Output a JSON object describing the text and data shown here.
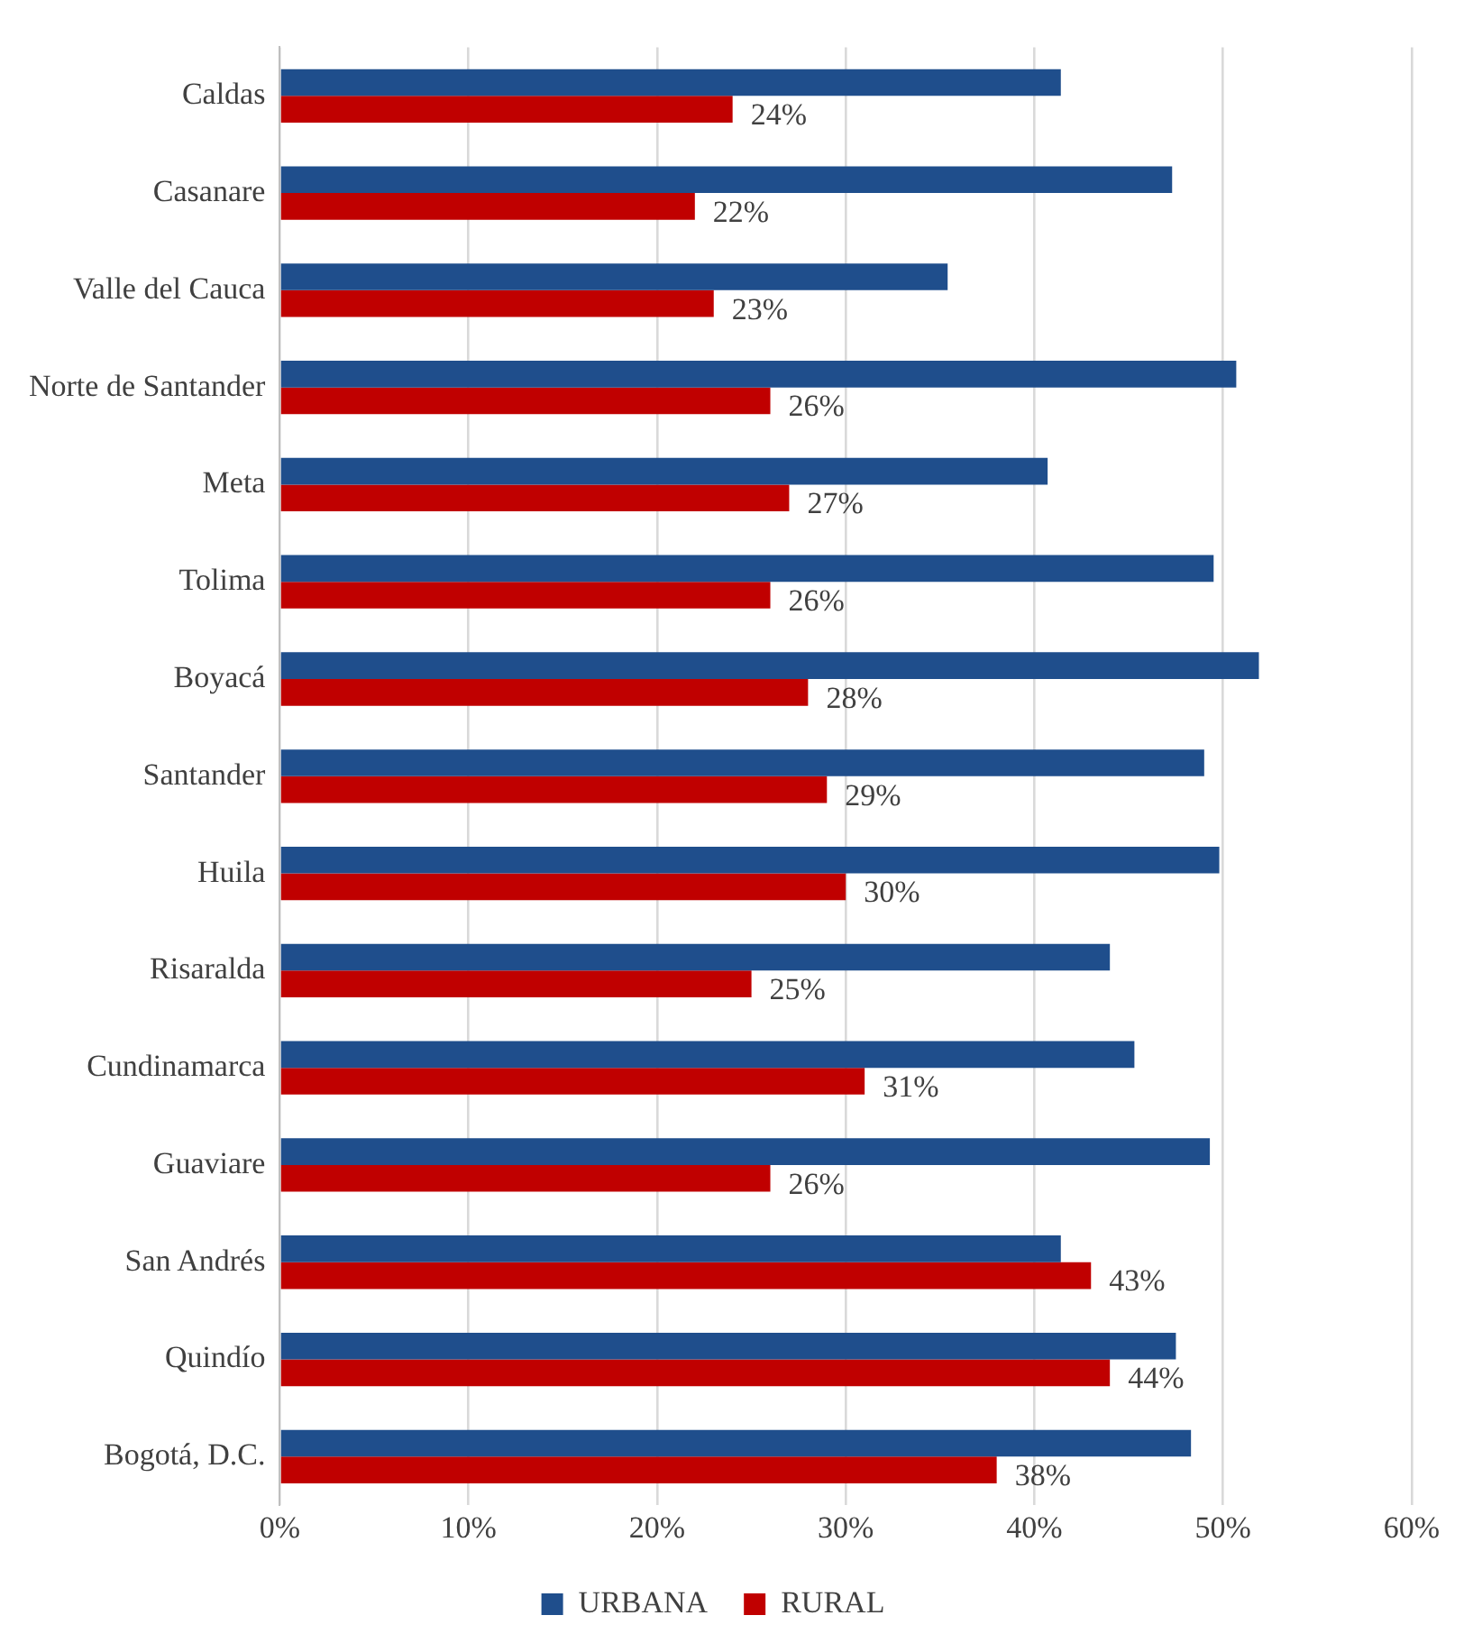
{
  "chart_data": {
    "type": "bar",
    "orientation": "horizontal",
    "categories": [
      "Caldas",
      "Casanare",
      "Valle del Cauca",
      "Norte de Santander",
      "Meta",
      "Tolima",
      "Boyacá",
      "Santander",
      "Huila",
      "Risaralda",
      "Cundinamarca",
      "Guaviare",
      "San Andrés",
      "Quindío",
      "Bogotá, D.C."
    ],
    "series": [
      {
        "name": "URBANA",
        "color": "#1f4e8c",
        "values": [
          41.4,
          47.3,
          35.4,
          50.7,
          40.7,
          49.5,
          51.9,
          49.0,
          49.8,
          44.0,
          45.3,
          49.3,
          41.4,
          47.5,
          48.3
        ]
      },
      {
        "name": "RURAL",
        "color": "#c00000",
        "values": [
          24,
          22,
          23,
          26,
          27,
          26,
          28,
          29,
          30,
          25,
          31,
          26,
          43,
          44,
          38
        ],
        "value_labels": [
          "24%",
          "22%",
          "23%",
          "26%",
          "27%",
          "26%",
          "28%",
          "29%",
          "30%",
          "25%",
          "31%",
          "26%",
          "43%",
          "44%",
          "38%"
        ]
      }
    ],
    "xlim": [
      0,
      60
    ],
    "xticks": [
      {
        "value": 0,
        "label": "0%"
      },
      {
        "value": 10,
        "label": "10%"
      },
      {
        "value": 20,
        "label": "20%"
      },
      {
        "value": 30,
        "label": "30%"
      },
      {
        "value": 40,
        "label": "40%"
      },
      {
        "value": 50,
        "label": "50%"
      },
      {
        "value": 60,
        "label": "60%"
      }
    ],
    "grid": "x",
    "legend": "bottom"
  }
}
